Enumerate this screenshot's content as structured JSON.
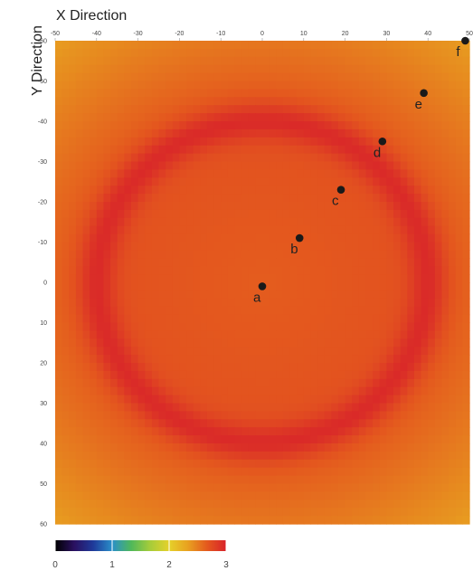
{
  "chart_data": {
    "type": "heatmap",
    "xlabel": "X Direction",
    "ylabel": "Y Direction",
    "x_ticks": [
      "-50",
      "-40",
      "-30",
      "-20",
      "-10",
      "0",
      "10",
      "20",
      "30",
      "40",
      "50"
    ],
    "y_ticks": [
      "-60",
      "-50",
      "-40",
      "-30",
      "-20",
      "-10",
      "0",
      "10",
      "20",
      "30",
      "40",
      "50",
      "60"
    ],
    "xlim": [
      -50,
      50
    ],
    "ylim": [
      -60,
      60
    ],
    "field": {
      "description_ring_radius": 40,
      "center_value": 2.65,
      "ring_peak_value": 2.95,
      "corner_value": 2.35
    },
    "points": [
      {
        "label": "a",
        "x": 0,
        "y": 1
      },
      {
        "label": "b",
        "x": 9,
        "y": -11
      },
      {
        "label": "c",
        "x": 19,
        "y": -23
      },
      {
        "label": "d",
        "x": 29,
        "y": -35
      },
      {
        "label": "e",
        "x": 39,
        "y": -47
      },
      {
        "label": "f",
        "x": 49,
        "y": -60
      }
    ],
    "colorbar": {
      "min": 0,
      "max": 3,
      "ticks": [
        "0",
        "1",
        "2",
        "3"
      ],
      "colors": [
        "#000000",
        "#2a1060",
        "#1f3a9a",
        "#2a8fc9",
        "#4fb85a",
        "#a6cc3a",
        "#e6d12a",
        "#e8a020",
        "#e4591e",
        "#d8222a"
      ]
    }
  }
}
